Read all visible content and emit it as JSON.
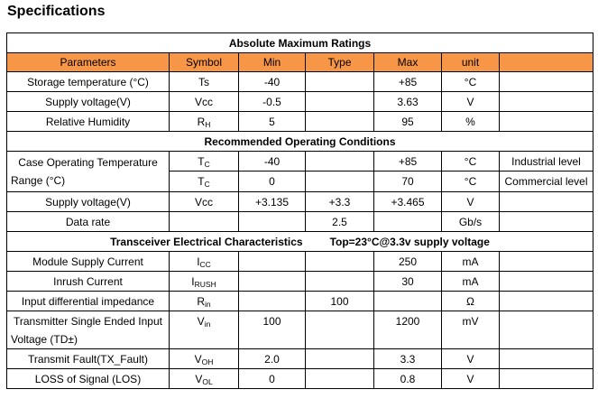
{
  "page": {
    "title": "Specifications"
  },
  "colors": {
    "header_orange": "#F79646",
    "border": "#000000",
    "text": "#000000",
    "background": "#FFFFFF"
  },
  "table": {
    "column_headers": [
      "Parameters",
      "Symbol",
      "Min",
      "Type",
      "Max",
      "unit",
      ""
    ],
    "sections": [
      "Absolute Maximum Ratings",
      "Recommended Operating Conditions",
      "Transceiver Electrical Characteristics"
    ],
    "transceiver_condition": "Top=23°C@3.3v supply voltage",
    "rows": [
      {
        "cls": "",
        "cells": [
          {
            "t": "Absolute Maximum Ratings",
            "colspan": 7,
            "cls": "sec"
          }
        ]
      },
      {
        "cls": "colhead",
        "cells": [
          {
            "t": "Parameters"
          },
          {
            "t": "Symbol"
          },
          {
            "t": "Min"
          },
          {
            "t": "Type"
          },
          {
            "t": "Max"
          },
          {
            "t": "unit"
          },
          {
            "t": ""
          }
        ]
      },
      {
        "cls": "",
        "cells": [
          {
            "t": "Storage temperature (°C)",
            "cls": "param"
          },
          {
            "t": "Ts"
          },
          {
            "t": "-40"
          },
          {
            "t": ""
          },
          {
            "t": "+85"
          },
          {
            "t": "°C"
          },
          {
            "t": ""
          }
        ]
      },
      {
        "cls": "",
        "cells": [
          {
            "t": "Supply voltage(V)",
            "cls": "param"
          },
          {
            "t": "Vcc"
          },
          {
            "t": "-0.5"
          },
          {
            "t": ""
          },
          {
            "t": "3.63"
          },
          {
            "t": "V"
          },
          {
            "t": ""
          }
        ]
      },
      {
        "cls": "",
        "cells": [
          {
            "t": "Relative Humidity",
            "cls": "param"
          },
          {
            "t": "R",
            "sub": "H"
          },
          {
            "t": "5"
          },
          {
            "t": ""
          },
          {
            "t": "95"
          },
          {
            "t": "%"
          },
          {
            "t": ""
          }
        ]
      },
      {
        "cls": "",
        "cells": [
          {
            "t": "Recommended Operating Conditions",
            "colspan": 7,
            "cls": "sec"
          }
        ]
      },
      {
        "cls": "",
        "cells": [
          {
            "t": "Case Operating Temperature Range (°C)",
            "cls": "param just vtop",
            "rowspan": 2
          },
          {
            "t": "T",
            "sub": "C"
          },
          {
            "t": "-40"
          },
          {
            "t": ""
          },
          {
            "t": "+85"
          },
          {
            "t": "°C"
          },
          {
            "t": "Industrial level",
            "cls": "note"
          }
        ]
      },
      {
        "cls": "vtop",
        "cells": [
          {
            "t": "T",
            "sub": "C"
          },
          {
            "t": "0"
          },
          {
            "t": ""
          },
          {
            "t": "70"
          },
          {
            "t": "°C"
          },
          {
            "t": "Commercial level",
            "cls": "note"
          }
        ]
      },
      {
        "cls": "",
        "cells": [
          {
            "t": "Supply voltage(V)",
            "cls": "param"
          },
          {
            "t": "Vcc"
          },
          {
            "t": "+3.135"
          },
          {
            "t": "+3.3"
          },
          {
            "t": "+3.465"
          },
          {
            "t": "V"
          },
          {
            "t": ""
          }
        ]
      },
      {
        "cls": "",
        "cells": [
          {
            "t": "Data rate",
            "cls": "param"
          },
          {
            "t": ""
          },
          {
            "t": ""
          },
          {
            "t": "2.5"
          },
          {
            "t": ""
          },
          {
            "t": "Gb/s"
          },
          {
            "t": ""
          }
        ]
      },
      {
        "cls": "",
        "cells": [
          {
            "t": "Transceiver Electrical Characteristics",
            "t2": "Top=23°C@3.3v supply voltage",
            "colspan": 7,
            "cls": "sec"
          }
        ]
      },
      {
        "cls": "",
        "cells": [
          {
            "t": "Module Supply Current",
            "cls": "param"
          },
          {
            "t": "I",
            "sub": "CC"
          },
          {
            "t": ""
          },
          {
            "t": ""
          },
          {
            "t": "250"
          },
          {
            "t": "mA"
          },
          {
            "t": ""
          }
        ]
      },
      {
        "cls": "",
        "cells": [
          {
            "t": "Inrush Current",
            "cls": "param"
          },
          {
            "t": "I",
            "sub": "RUSH"
          },
          {
            "t": ""
          },
          {
            "t": ""
          },
          {
            "t": "30"
          },
          {
            "t": "mA"
          },
          {
            "t": ""
          }
        ]
      },
      {
        "cls": "",
        "cells": [
          {
            "t": "Input differential impedance",
            "cls": "param"
          },
          {
            "t": "R",
            "sub": "in"
          },
          {
            "t": ""
          },
          {
            "t": "100"
          },
          {
            "t": ""
          },
          {
            "t": "Ω"
          },
          {
            "t": ""
          }
        ]
      },
      {
        "cls": "vtop",
        "cells": [
          {
            "t": "Transmitter Single Ended Input Voltage (TD±)",
            "cls": "param just"
          },
          {
            "t": "V",
            "sub": "in"
          },
          {
            "t": "100"
          },
          {
            "t": ""
          },
          {
            "t": "1200"
          },
          {
            "t": "mV"
          },
          {
            "t": ""
          }
        ]
      },
      {
        "cls": "",
        "cells": [
          {
            "t": "Transmit Fault(TX_Fault)",
            "cls": "param"
          },
          {
            "t": "V",
            "sub": "OH"
          },
          {
            "t": "2.0"
          },
          {
            "t": ""
          },
          {
            "t": "3.3"
          },
          {
            "t": "V"
          },
          {
            "t": ""
          }
        ]
      },
      {
        "cls": "",
        "cells": [
          {
            "t": "LOSS of Signal (LOS)",
            "cls": "param"
          },
          {
            "t": "V",
            "sub": "OL"
          },
          {
            "t": "0"
          },
          {
            "t": ""
          },
          {
            "t": "0.8"
          },
          {
            "t": "V"
          },
          {
            "t": ""
          }
        ]
      }
    ]
  }
}
